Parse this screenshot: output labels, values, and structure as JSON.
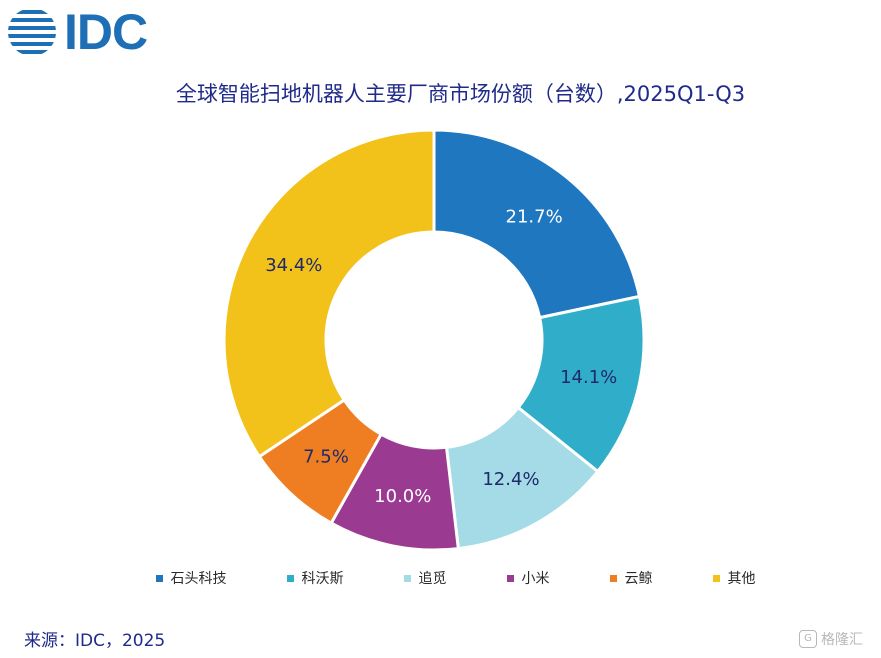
{
  "logo": {
    "text": "IDC"
  },
  "title": "全球智能扫地机器人主要厂商市场份额（台数）,2025Q1-Q3",
  "chart_data": {
    "type": "pie",
    "variant": "donut",
    "title": "全球智能扫地机器人主要厂商市场份额（台数）,2025Q1-Q3",
    "labels": [
      "石头科技",
      "科沃斯",
      "追觅",
      "小米",
      "云鲸",
      "其他"
    ],
    "values": [
      21.7,
      14.1,
      12.4,
      10.0,
      7.5,
      34.4
    ],
    "value_labels": [
      "21.7%",
      "14.1%",
      "12.4%",
      "10.0%",
      "7.5%",
      "34.4%"
    ],
    "colors": [
      "#1f77c0",
      "#30aec9",
      "#a4dbe7",
      "#9b3a91",
      "#ef7e22",
      "#f2c11a"
    ],
    "legend_position": "bottom"
  },
  "source": "来源：IDC，2025",
  "watermark": "格隆汇"
}
